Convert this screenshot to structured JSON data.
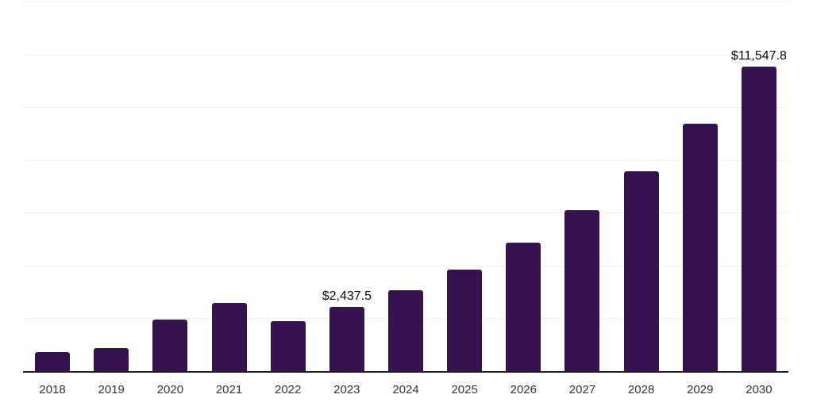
{
  "chart_data": {
    "type": "bar",
    "title": "",
    "xlabel": "",
    "ylabel": "",
    "categories": [
      "2018",
      "2019",
      "2020",
      "2021",
      "2022",
      "2023",
      "2024",
      "2025",
      "2026",
      "2027",
      "2028",
      "2029",
      "2030"
    ],
    "values": [
      715,
      885,
      1960,
      2570,
      1890,
      2437.5,
      3055,
      3840,
      4855,
      6110,
      7575,
      9370,
      11547.8
    ],
    "data_labels": {
      "2023": "$2,437.5",
      "2030": "$11,547.8"
    },
    "ylim": [
      0,
      14000
    ],
    "gridline_step": 2000,
    "grid": true,
    "legend": "none",
    "colors": {
      "bar": "#35134F",
      "gridline": "#f0f0f0",
      "axis_line": "#212121",
      "tick_label": "#333333",
      "data_label": "#0a0a0a"
    }
  }
}
